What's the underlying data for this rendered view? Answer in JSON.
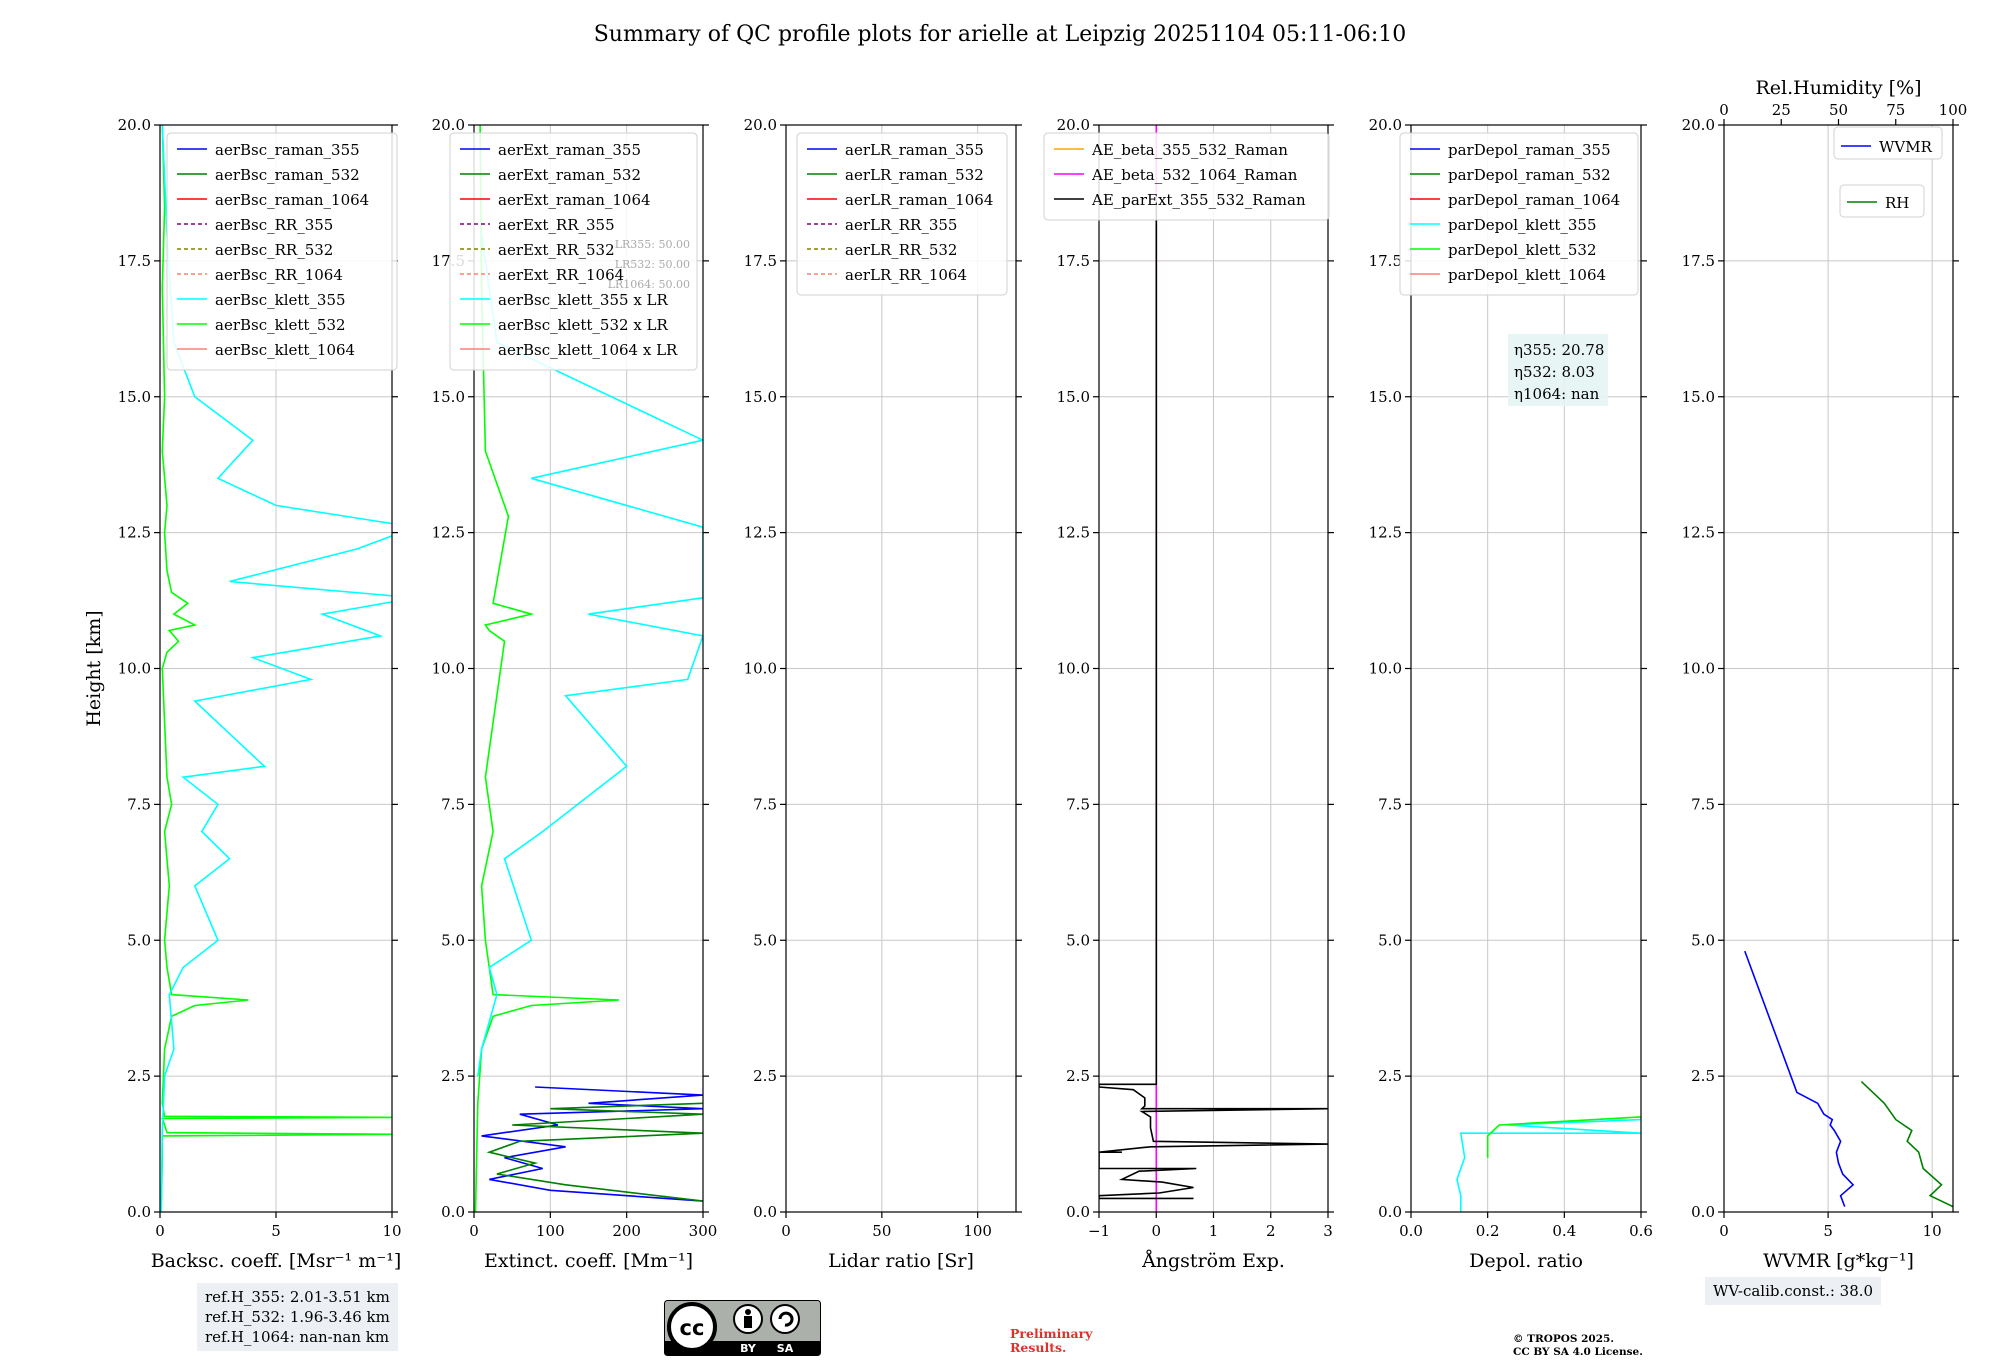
{
  "title": "Summary of QC profile plots for arielle at Leipzig 20251104 05:11-06:10",
  "colors": {
    "raman_355": "#0000ff",
    "raman_532": "#008000",
    "raman_1064": "#ff0000",
    "rr_355": "#800080",
    "rr_532": "#808000",
    "rr_1064": "#fa8072",
    "klett_355": "#00ffff",
    "klett_532": "#00ff00",
    "klett_1064": "#ff7f7f",
    "ae_355_532": "#ffa500",
    "ae_532_1064": "#ff00ff",
    "ae_ext": "#000000",
    "grid": "#c8c8c8"
  },
  "chart_data": [
    {
      "type": "line",
      "id": "backscatter",
      "xlabel": "Backsc. coeff. [Msr⁻¹ m⁻¹]",
      "ylabel": "Height [km]",
      "xlim": [
        0,
        10
      ],
      "ylim": [
        0,
        20
      ],
      "xticks": [
        0,
        5,
        10
      ],
      "xticklabels": [
        "0",
        "5",
        "10"
      ],
      "yticks": [
        0,
        2.5,
        5,
        7.5,
        10,
        12.5,
        15,
        17.5,
        20
      ],
      "yticklabels": [
        "0.0",
        "2.5",
        "5.0",
        "7.5",
        "10.0",
        "12.5",
        "15.0",
        "17.5",
        "20.0"
      ],
      "legend": [
        "aerBsc_raman_355",
        "aerBsc_raman_532",
        "aerBsc_raman_1064",
        "aerBsc_RR_355",
        "aerBsc_RR_532",
        "aerBsc_RR_1064",
        "aerBsc_klett_355",
        "aerBsc_klett_532",
        "aerBsc_klett_1064"
      ],
      "series": [
        {
          "name": "aerBsc_klett_532",
          "color": "klett_532",
          "x": [
            0.05,
            0.1,
            0.1,
            0.2,
            10,
            0.3,
            0.2,
            0.1,
            10,
            0.2,
            0.1,
            0.2,
            0.5,
            1.5,
            3.8,
            0.5,
            0.3,
            0.2,
            0.4,
            0.2,
            0.5,
            0.3,
            0.2,
            0.1,
            0.3,
            0.8,
            0.4,
            1.5,
            0.6,
            1.2,
            0.5,
            0.3,
            0.2,
            0.3,
            0.1,
            0.2,
            0.1,
            0.2,
            0.1
          ],
          "y": [
            0,
            1.0,
            1.4,
            1.4,
            1.43,
            1.46,
            1.6,
            1.72,
            1.74,
            1.76,
            2.0,
            3.0,
            3.6,
            3.8,
            3.9,
            4.0,
            4.5,
            5.0,
            6.0,
            7.0,
            7.5,
            8.0,
            9.0,
            10.0,
            10.3,
            10.5,
            10.7,
            10.8,
            11.0,
            11.2,
            11.4,
            11.8,
            12.5,
            13.0,
            14.0,
            15.0,
            17.0,
            18.5,
            20.0
          ]
        },
        {
          "name": "aerBsc_klett_355",
          "color": "klett_355",
          "x": [
            0.05,
            0.1,
            0.2,
            0.6,
            0.4,
            1.0,
            2.5,
            1.5,
            3.0,
            1.8,
            2.5,
            1.0,
            4.5,
            3.5,
            1.5,
            6.5,
            4.0,
            9.5,
            7.0,
            11.0,
            3.0,
            8.5,
            11.0,
            5.0,
            2.5,
            4.0,
            1.5,
            0.6,
            0.3,
            0.1
          ],
          "y": [
            0,
            1.5,
            2.5,
            3.0,
            4.0,
            4.5,
            5.0,
            6.0,
            6.5,
            7.0,
            7.5,
            8.0,
            8.2,
            8.6,
            9.4,
            9.8,
            10.2,
            10.6,
            11.0,
            11.3,
            11.6,
            12.2,
            12.6,
            13.0,
            13.5,
            14.2,
            15.0,
            16.0,
            18.0,
            20.0
          ]
        }
      ],
      "annotation": [
        "ref.H_355: 2.01-3.51 km",
        "ref.H_532: 1.96-3.46 km",
        "ref.H_1064: nan-nan km"
      ]
    },
    {
      "type": "line",
      "id": "extinction",
      "xlabel": "Extinct. coeff. [Mm⁻¹]",
      "ylabel": "",
      "xlim": [
        0,
        300
      ],
      "ylim": [
        0,
        20
      ],
      "xticks": [
        0,
        100,
        200,
        300
      ],
      "xticklabels": [
        "0",
        "100",
        "200",
        "300"
      ],
      "yticks": [
        0,
        2.5,
        5,
        7.5,
        10,
        12.5,
        15,
        17.5,
        20
      ],
      "yticklabels": [
        "0.0",
        "2.5",
        "5.0",
        "7.5",
        "10.0",
        "12.5",
        "15.0",
        "17.5",
        "20.0"
      ],
      "legend": [
        "aerExt_raman_355",
        "aerExt_raman_532",
        "aerExt_raman_1064",
        "aerExt_RR_355",
        "aerExt_RR_532",
        "aerExt_RR_1064",
        "aerBsc_klett_355 x LR",
        "aerBsc_klett_532 x LR",
        "aerBsc_klett_1064 x LR"
      ],
      "lr_labels": [
        "LR355: 50.00",
        "LR532: 50.00",
        "LR1064: 50.00"
      ],
      "series": [
        {
          "name": "aerExt_raman_355",
          "color": "raman_355",
          "x": [
            300,
            100,
            20,
            90,
            40,
            120,
            10,
            110,
            60,
            300,
            150,
            300,
            80
          ],
          "y": [
            0.2,
            0.4,
            0.6,
            0.8,
            1.0,
            1.2,
            1.4,
            1.6,
            1.8,
            1.9,
            2.0,
            2.15,
            2.3
          ]
        },
        {
          "name": "aerExt_raman_532",
          "color": "raman_532",
          "x": [
            300,
            120,
            30,
            80,
            20,
            60,
            300,
            50,
            300,
            100,
            300
          ],
          "y": [
            0.2,
            0.5,
            0.7,
            0.9,
            1.1,
            1.3,
            1.45,
            1.6,
            1.8,
            1.9,
            2.0
          ]
        },
        {
          "name": "aerBsc_klett_532 x LR",
          "color": "klett_532",
          "x": [
            2,
            5,
            10,
            25,
            75,
            190,
            25,
            15,
            10,
            25,
            15,
            40,
            20,
            15,
            75,
            25,
            45,
            15,
            10,
            8
          ],
          "y": [
            0,
            2.0,
            3.0,
            3.6,
            3.8,
            3.9,
            4.0,
            5.0,
            6.0,
            7.0,
            8.0,
            10.5,
            10.7,
            10.8,
            11.0,
            11.2,
            12.8,
            14.0,
            17.0,
            20.0
          ]
        },
        {
          "name": "aerBsc_klett_355 x LR",
          "color": "klett_355",
          "x": [
            5,
            10,
            30,
            20,
            75,
            40,
            90,
            200,
            120,
            280,
            300,
            150,
            300,
            300,
            75,
            300,
            30,
            10
          ],
          "y": [
            2.5,
            3.0,
            4.0,
            4.5,
            5.0,
            6.5,
            7.0,
            8.2,
            9.5,
            9.8,
            10.6,
            11.0,
            11.3,
            12.6,
            13.5,
            14.2,
            16.0,
            18.0
          ]
        }
      ]
    },
    {
      "type": "line",
      "id": "lidar_ratio",
      "xlabel": "Lidar ratio [Sr]",
      "ylabel": "",
      "xlim": [
        0,
        120
      ],
      "ylim": [
        0,
        20
      ],
      "xticks": [
        0,
        50,
        100
      ],
      "xticklabels": [
        "0",
        "50",
        "100"
      ],
      "yticks": [
        0,
        2.5,
        5,
        7.5,
        10,
        12.5,
        15,
        17.5,
        20
      ],
      "yticklabels": [
        "0.0",
        "2.5",
        "5.0",
        "7.5",
        "10.0",
        "12.5",
        "15.0",
        "17.5",
        "20.0"
      ],
      "legend": [
        "aerLR_raman_355",
        "aerLR_raman_532",
        "aerLR_raman_1064",
        "aerLR_RR_355",
        "aerLR_RR_532",
        "aerLR_RR_1064"
      ],
      "series": []
    },
    {
      "type": "line",
      "id": "angstrom",
      "xlabel": "Ångström Exp.",
      "ylabel": "",
      "xlim": [
        -1,
        3
      ],
      "ylim": [
        0,
        20
      ],
      "xticks": [
        -1,
        0,
        1,
        2,
        3
      ],
      "xticklabels": [
        "−1",
        "0",
        "1",
        "2",
        "3"
      ],
      "yticks": [
        0,
        2.5,
        5,
        7.5,
        10,
        12.5,
        15,
        17.5,
        20
      ],
      "yticklabels": [
        "0.0",
        "2.5",
        "5.0",
        "7.5",
        "10.0",
        "12.5",
        "15.0",
        "17.5",
        "20.0"
      ],
      "legend": [
        "AE_beta_355_532_Raman",
        "AE_beta_532_1064_Raman",
        "AE_parExt_355_532_Raman"
      ],
      "series": [
        {
          "name": "AE_beta_532_1064_Raman",
          "color": "ae_532_1064",
          "x": [
            0,
            0
          ],
          "y": [
            0,
            20
          ]
        },
        {
          "name": "AE_parExt_355_532_Raman",
          "color": "ae_ext",
          "x": [
            0,
            0,
            -1,
            -1,
            -0.4,
            -0.2,
            -0.2,
            -0.25,
            3,
            -0.25,
            -0.1,
            -0.1,
            -0.05,
            3,
            -0.1,
            -1,
            -1,
            -0.6,
            -1,
            -1,
            0.7,
            -0.3,
            -0.6,
            0.1,
            0.65,
            0.05,
            -1,
            -1,
            0.65,
            0.65
          ],
          "y": [
            18.6,
            2.35,
            2.35,
            2.3,
            2.25,
            2.1,
            1.95,
            1.9,
            1.9,
            1.85,
            1.75,
            1.55,
            1.3,
            1.25,
            1.2,
            1.1,
            1.1,
            1.1,
            1.1,
            0.8,
            0.8,
            0.75,
            0.6,
            0.55,
            0.45,
            0.35,
            0.3,
            0.25,
            0.25,
            0.25
          ]
        }
      ]
    },
    {
      "type": "line",
      "id": "depol",
      "xlabel": "Depol. ratio",
      "ylabel": "",
      "xlim": [
        0,
        0.6
      ],
      "ylim": [
        0,
        20
      ],
      "xticks": [
        0,
        0.2,
        0.4,
        0.6
      ],
      "xticklabels": [
        "0.0",
        "0.2",
        "0.4",
        "0.6"
      ],
      "yticks": [
        0,
        2.5,
        5,
        7.5,
        10,
        12.5,
        15,
        17.5,
        20
      ],
      "yticklabels": [
        "0.0",
        "2.5",
        "5.0",
        "7.5",
        "10.0",
        "12.5",
        "15.0",
        "17.5",
        "20.0"
      ],
      "legend": [
        "parDepol_raman_355",
        "parDepol_raman_532",
        "parDepol_raman_1064",
        "parDepol_klett_355",
        "parDepol_klett_532",
        "parDepol_klett_1064"
      ],
      "eta_labels": [
        "η355: 20.78",
        "η532: 8.03",
        "η1064: nan"
      ],
      "series": [
        {
          "name": "parDepol_klett_355",
          "color": "klett_355",
          "x": [
            0.13,
            0.13,
            0.12,
            0.14,
            0.13,
            0.6,
            0.25,
            0.6
          ],
          "y": [
            0,
            0.3,
            0.6,
            1.0,
            1.45,
            1.45,
            1.6,
            1.7
          ]
        },
        {
          "name": "parDepol_klett_532",
          "color": "klett_532",
          "x": [
            0.2,
            0.2,
            0.23,
            0.6
          ],
          "y": [
            1.0,
            1.4,
            1.6,
            1.75
          ]
        }
      ]
    },
    {
      "type": "line",
      "id": "wvmr",
      "xlabel": "WVMR [g*kg⁻¹]",
      "ylabel": "",
      "x2label": "Rel.Humidity [%]",
      "xlim": [
        0,
        11
      ],
      "ylim": [
        0,
        20
      ],
      "x2lim": [
        0,
        100
      ],
      "xticks": [
        0,
        5,
        10
      ],
      "xticklabels": [
        "0",
        "5",
        "10"
      ],
      "x2ticks": [
        0,
        25,
        50,
        75,
        100
      ],
      "x2ticklabels": [
        "0",
        "25",
        "50",
        "75",
        "100"
      ],
      "yticks": [
        0,
        2.5,
        5,
        7.5,
        10,
        12.5,
        15,
        17.5,
        20
      ],
      "yticklabels": [
        "0.0",
        "2.5",
        "5.0",
        "7.5",
        "10.0",
        "12.5",
        "15.0",
        "17.5",
        "20.0"
      ],
      "legend": [
        "WVMR",
        "RH"
      ],
      "annotation": "WV-calib.const.: 38.0",
      "series": [
        {
          "name": "WVMR",
          "color": "raman_355",
          "x": [
            5.8,
            5.6,
            6.2,
            5.7,
            5.5,
            5.4,
            5.6,
            5.3,
            5.1,
            5.2,
            4.8,
            4.5,
            3.5,
            1.0
          ],
          "y": [
            0.1,
            0.3,
            0.5,
            0.7,
            0.9,
            1.1,
            1.3,
            1.5,
            1.6,
            1.7,
            1.8,
            2.0,
            2.2,
            4.8
          ]
        },
        {
          "name": "RH",
          "color": "raman_532",
          "x": [
            100,
            90,
            95,
            87,
            85,
            80,
            82,
            75,
            70,
            60
          ],
          "y": [
            0.1,
            0.3,
            0.5,
            0.8,
            1.1,
            1.3,
            1.5,
            1.7,
            2.0,
            2.4
          ]
        }
      ]
    }
  ],
  "footer": {
    "license_badge": [
      "cc",
      "BY",
      "SA"
    ],
    "preliminary": [
      "Preliminary",
      "Results."
    ],
    "copyright": [
      "© TROPOS 2025.",
      "CC BY SA 4.0 License."
    ]
  }
}
